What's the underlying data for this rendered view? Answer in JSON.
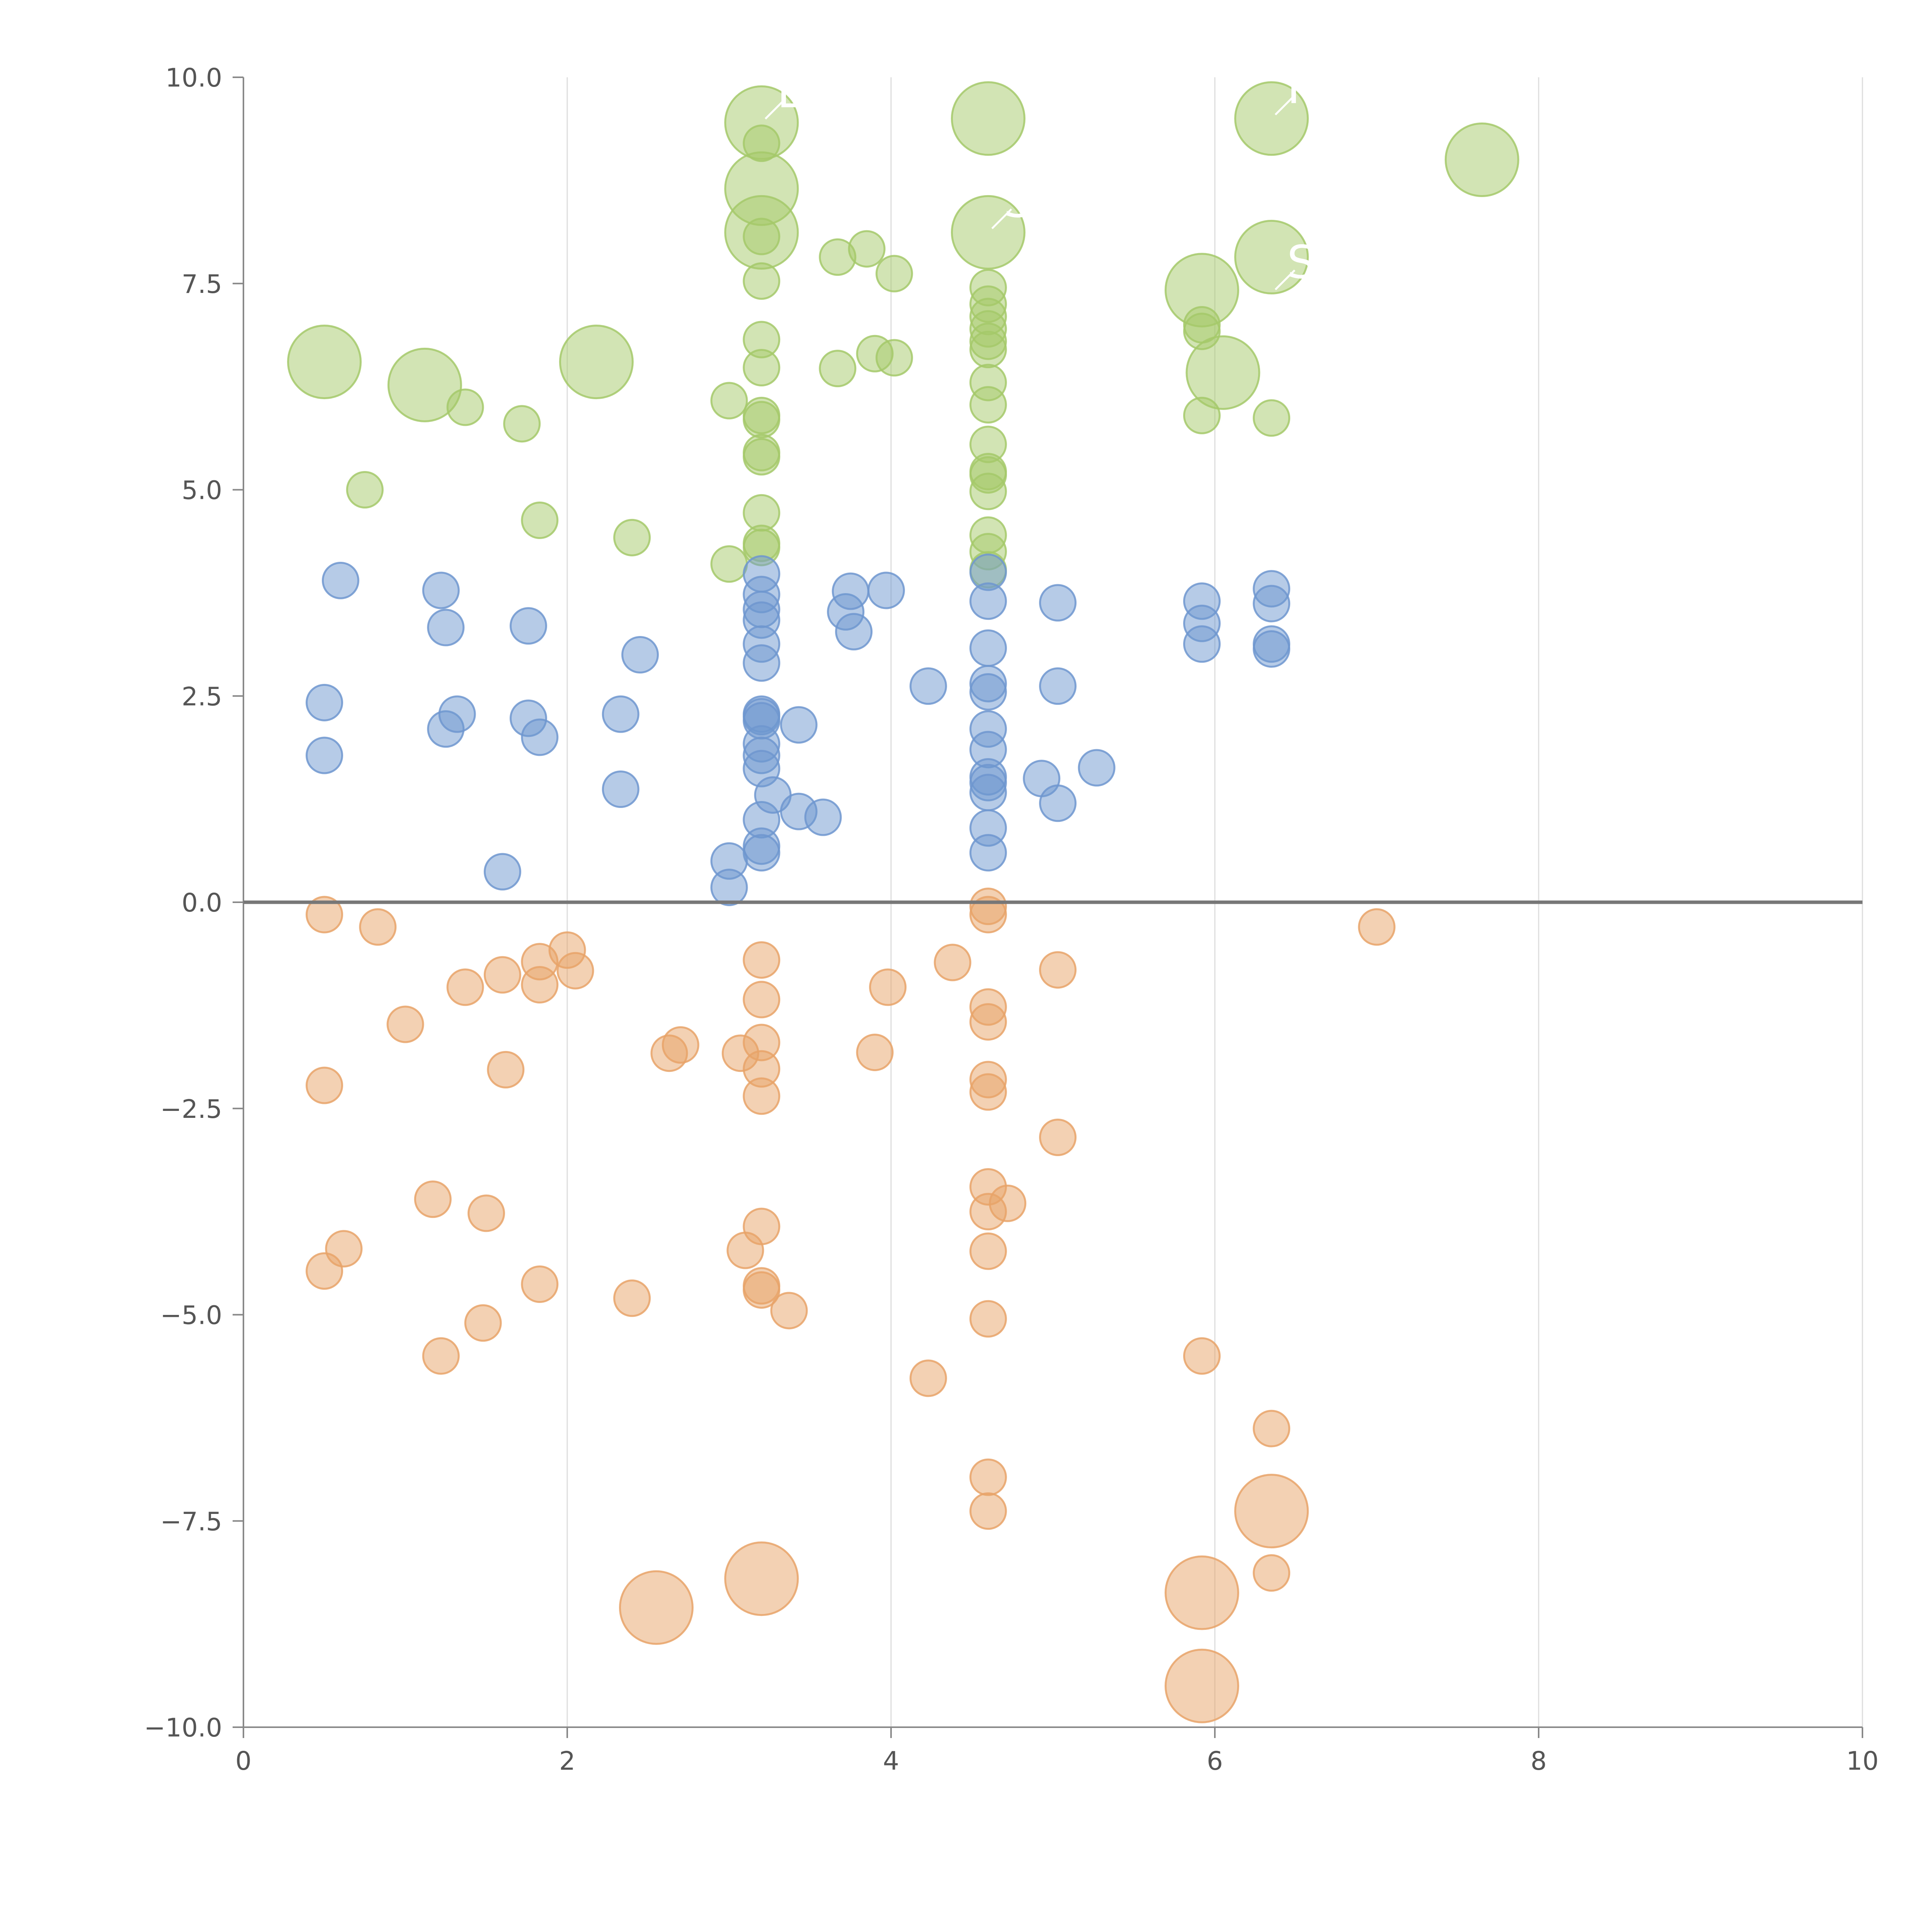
{
  "chart_data": {
    "type": "scatter",
    "title": "",
    "xlabel": "",
    "ylabel": "",
    "xlim": [
      0,
      10
    ],
    "ylim": [
      -10,
      10
    ],
    "x_ticks": [
      0,
      2,
      4,
      6,
      8,
      10
    ],
    "y_ticks": [
      10,
      7.5,
      5,
      2.5,
      0,
      -2.5,
      -5,
      -7.5,
      -10
    ],
    "x_tick_labels": [
      "0",
      "2",
      "4",
      "6",
      "8",
      "10"
    ],
    "y_tick_labels": [
      "10.0",
      "7.5",
      "5.0",
      "2.5",
      "0.0",
      "−2.5",
      "−5.0",
      "−7.5",
      "−10.0"
    ],
    "vertical_grid": true,
    "zero_line": true,
    "legend": "none",
    "colors": {
      "green": "#a5c96a",
      "blue": "#6e97cf",
      "orange": "#e8a368"
    },
    "series": [
      {
        "color_key": "green",
        "points": [
          [
            3.2,
            9.45,
            "L"
          ],
          [
            3.2,
            8.65,
            "L"
          ],
          [
            3.2,
            8.12,
            "L"
          ],
          [
            4.6,
            9.5,
            "L"
          ],
          [
            6.35,
            9.5,
            "L"
          ],
          [
            7.65,
            9.0,
            "L"
          ],
          [
            4.6,
            8.12,
            "L"
          ],
          [
            6.35,
            7.82,
            "L"
          ],
          [
            5.92,
            7.42,
            "L"
          ],
          [
            6.05,
            6.42,
            "L"
          ],
          [
            0.5,
            6.55,
            "L"
          ],
          [
            1.12,
            6.27,
            "L"
          ],
          [
            2.18,
            6.55,
            "L"
          ],
          [
            3.2,
            9.2
          ],
          [
            3.2,
            8.07
          ],
          [
            3.2,
            7.53
          ],
          [
            3.2,
            6.82
          ],
          [
            3.2,
            6.48
          ],
          [
            3.2,
            5.9
          ],
          [
            3.2,
            5.85
          ],
          [
            3.2,
            5.45
          ],
          [
            3.2,
            5.4
          ],
          [
            3.2,
            4.72
          ],
          [
            3.2,
            4.35
          ],
          [
            3.2,
            4.3
          ],
          [
            3.0,
            6.08
          ],
          [
            3.67,
            7.82
          ],
          [
            3.85,
            7.92
          ],
          [
            4.02,
            7.62
          ],
          [
            3.67,
            6.47
          ],
          [
            3.9,
            6.65
          ],
          [
            4.02,
            6.6
          ],
          [
            4.6,
            7.45
          ],
          [
            4.6,
            7.25
          ],
          [
            4.6,
            7.1
          ],
          [
            4.6,
            6.95
          ],
          [
            4.6,
            6.8
          ],
          [
            4.6,
            6.7
          ],
          [
            4.6,
            6.3
          ],
          [
            4.6,
            6.03
          ],
          [
            4.6,
            5.55
          ],
          [
            4.6,
            5.22
          ],
          [
            4.6,
            5.18
          ],
          [
            4.6,
            4.98
          ],
          [
            4.6,
            4.45
          ],
          [
            4.6,
            4.25
          ],
          [
            4.6,
            4.03
          ],
          [
            5.92,
            7.0
          ],
          [
            5.92,
            6.92
          ],
          [
            5.92,
            5.9
          ],
          [
            6.35,
            5.87
          ],
          [
            0.75,
            5.0
          ],
          [
            1.37,
            6.0
          ],
          [
            1.72,
            5.8
          ],
          [
            1.83,
            4.63
          ],
          [
            2.4,
            4.42
          ],
          [
            3.0,
            4.1
          ]
        ]
      },
      {
        "color_key": "blue",
        "points": [
          [
            0.6,
            3.9
          ],
          [
            1.22,
            3.78
          ],
          [
            1.25,
            3.33
          ],
          [
            1.76,
            3.35
          ],
          [
            2.45,
            3.0
          ],
          [
            0.5,
            2.42
          ],
          [
            0.5,
            1.78
          ],
          [
            1.25,
            2.1
          ],
          [
            1.32,
            2.28
          ],
          [
            1.76,
            2.23
          ],
          [
            1.83,
            2.0
          ],
          [
            2.33,
            2.28
          ],
          [
            2.33,
            1.37
          ],
          [
            1.6,
            0.37
          ],
          [
            3.2,
            3.98
          ],
          [
            3.2,
            3.73
          ],
          [
            3.2,
            3.55
          ],
          [
            3.2,
            3.42
          ],
          [
            3.2,
            3.13
          ],
          [
            3.2,
            2.9
          ],
          [
            3.2,
            2.28
          ],
          [
            3.2,
            2.25
          ],
          [
            3.2,
            2.2
          ],
          [
            3.2,
            1.92
          ],
          [
            3.2,
            1.78
          ],
          [
            3.2,
            1.62
          ],
          [
            3.2,
            1.0
          ],
          [
            3.2,
            0.68
          ],
          [
            3.2,
            0.6
          ],
          [
            3.27,
            1.3
          ],
          [
            3.43,
            2.15
          ],
          [
            3.43,
            1.1
          ],
          [
            3.58,
            1.03
          ],
          [
            3.0,
            0.5
          ],
          [
            3.0,
            0.18
          ],
          [
            3.72,
            3.52
          ],
          [
            3.75,
            3.77
          ],
          [
            3.77,
            3.28
          ],
          [
            3.97,
            3.78
          ],
          [
            4.23,
            2.62
          ],
          [
            4.6,
            4.0
          ],
          [
            4.6,
            3.65
          ],
          [
            4.6,
            3.08
          ],
          [
            4.6,
            2.65
          ],
          [
            4.6,
            2.55
          ],
          [
            4.6,
            2.1
          ],
          [
            4.6,
            1.85
          ],
          [
            4.6,
            1.52
          ],
          [
            4.6,
            1.45
          ],
          [
            4.6,
            1.33
          ],
          [
            4.6,
            0.9
          ],
          [
            4.6,
            0.6
          ],
          [
            4.93,
            1.5
          ],
          [
            5.03,
            3.63
          ],
          [
            5.03,
            2.62
          ],
          [
            5.03,
            1.2
          ],
          [
            5.27,
            1.63
          ],
          [
            5.92,
            3.65
          ],
          [
            5.92,
            3.38
          ],
          [
            5.92,
            3.13
          ],
          [
            6.35,
            3.8
          ],
          [
            6.35,
            3.62
          ],
          [
            6.35,
            3.13
          ],
          [
            6.35,
            3.07
          ]
        ]
      },
      {
        "color_key": "orange",
        "points": [
          [
            2.55,
            -8.55,
            "L"
          ],
          [
            3.2,
            -8.2,
            "L"
          ],
          [
            5.92,
            -8.37,
            "L"
          ],
          [
            5.92,
            -9.5,
            "L"
          ],
          [
            6.35,
            -7.38,
            "L"
          ],
          [
            0.5,
            -0.15
          ],
          [
            0.83,
            -0.3
          ],
          [
            1.0,
            -1.48
          ],
          [
            1.37,
            -1.03
          ],
          [
            1.6,
            -0.88
          ],
          [
            1.83,
            -0.72
          ],
          [
            1.83,
            -1.0
          ],
          [
            2.0,
            -0.58
          ],
          [
            2.05,
            -0.83
          ],
          [
            0.5,
            -2.22
          ],
          [
            1.62,
            -2.03
          ],
          [
            2.63,
            -1.83
          ],
          [
            2.7,
            -1.73
          ],
          [
            3.07,
            -1.83
          ],
          [
            3.2,
            -0.7
          ],
          [
            3.2,
            -1.18
          ],
          [
            3.2,
            -1.7
          ],
          [
            3.2,
            -2.02
          ],
          [
            3.2,
            -2.35
          ],
          [
            3.98,
            -1.03
          ],
          [
            3.9,
            -1.82
          ],
          [
            4.38,
            -0.73
          ],
          [
            4.6,
            -0.05
          ],
          [
            4.6,
            -0.15
          ],
          [
            4.6,
            -1.27
          ],
          [
            4.6,
            -1.45
          ],
          [
            4.6,
            -2.15
          ],
          [
            4.6,
            -2.3
          ],
          [
            5.03,
            -0.82
          ],
          [
            5.03,
            -2.85
          ],
          [
            7.0,
            -0.3
          ],
          [
            1.17,
            -3.6
          ],
          [
            1.5,
            -3.77
          ],
          [
            0.62,
            -4.2
          ],
          [
            0.5,
            -4.47
          ],
          [
            1.83,
            -4.63
          ],
          [
            1.48,
            -5.1
          ],
          [
            1.22,
            -5.5
          ],
          [
            2.4,
            -4.8
          ],
          [
            3.2,
            -3.93
          ],
          [
            3.1,
            -4.22
          ],
          [
            3.2,
            -4.65
          ],
          [
            3.2,
            -4.7
          ],
          [
            3.37,
            -4.95
          ],
          [
            4.6,
            -3.45
          ],
          [
            4.72,
            -3.65
          ],
          [
            4.6,
            -3.75
          ],
          [
            4.6,
            -4.23
          ],
          [
            4.6,
            -5.05
          ],
          [
            4.23,
            -5.77
          ],
          [
            4.6,
            -6.97
          ],
          [
            4.6,
            -7.38
          ],
          [
            5.92,
            -5.5
          ],
          [
            6.35,
            -6.38
          ],
          [
            6.35,
            -8.13
          ]
        ]
      }
    ],
    "callouts": [
      {
        "x": 3.2,
        "y": 9.45,
        "color_key": "green",
        "text": "L"
      },
      {
        "x": 4.6,
        "y": 8.12,
        "color_key": "green",
        "text": "ST"
      },
      {
        "x": 6.35,
        "y": 9.5,
        "color_key": "green",
        "text": "R"
      },
      {
        "x": 6.35,
        "y": 7.38,
        "color_key": "orange",
        "text": "S"
      }
    ]
  }
}
